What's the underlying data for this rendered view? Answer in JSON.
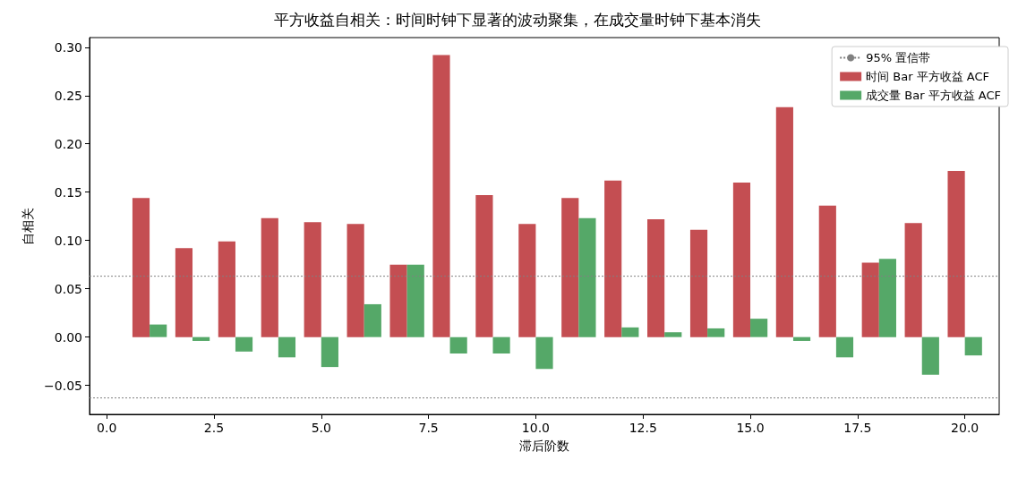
{
  "chart_data": {
    "type": "bar",
    "title": "平方收益自相关：时间时钟下显著的波动聚集，在成交量时钟下基本消失",
    "xlabel": "滞后阶数",
    "ylabel": "自相关",
    "x": [
      1,
      2,
      3,
      4,
      5,
      6,
      7,
      8,
      9,
      10,
      11,
      12,
      13,
      14,
      15,
      16,
      17,
      18,
      19,
      20
    ],
    "series": [
      {
        "name": "时间 Bar 平方收益 ACF",
        "color": "#c44e52",
        "values": [
          0.144,
          0.092,
          0.099,
          0.123,
          0.119,
          0.117,
          0.075,
          0.292,
          0.147,
          0.117,
          0.144,
          0.162,
          0.122,
          0.111,
          0.16,
          0.238,
          0.136,
          0.077,
          0.118,
          0.172
        ]
      },
      {
        "name": "成交量 Bar 平方收益 ACF",
        "color": "#55a868",
        "values": [
          0.013,
          -0.004,
          -0.015,
          -0.021,
          -0.031,
          0.034,
          0.075,
          -0.017,
          -0.017,
          -0.033,
          0.123,
          0.01,
          0.005,
          0.009,
          0.019,
          -0.004,
          -0.021,
          0.081,
          -0.039,
          -0.019
        ]
      }
    ],
    "xlim": [
      -0.4,
      20.8
    ],
    "xticks": [
      {
        "value": 0,
        "label": "0.0"
      },
      {
        "value": 2.5,
        "label": "2.5"
      },
      {
        "value": 5,
        "label": "5.0"
      },
      {
        "value": 7.5,
        "label": "7.5"
      },
      {
        "value": 10,
        "label": "10.0"
      },
      {
        "value": 12.5,
        "label": "12.5"
      },
      {
        "value": 15,
        "label": "15.0"
      },
      {
        "value": 17.5,
        "label": "17.5"
      },
      {
        "value": 20,
        "label": "20.0"
      }
    ],
    "ylim": [
      -0.08,
      0.31
    ],
    "yticks": [
      {
        "value": -0.05,
        "label": "−0.05"
      },
      {
        "value": 0,
        "label": "0.00"
      },
      {
        "value": 0.05,
        "label": "0.05"
      },
      {
        "value": 0.1,
        "label": "0.10"
      },
      {
        "value": 0.15,
        "label": "0.15"
      },
      {
        "value": 0.2,
        "label": "0.20"
      },
      {
        "value": 0.25,
        "label": "0.25"
      },
      {
        "value": 0.3,
        "label": "0.30"
      }
    ],
    "ref_lines": [
      {
        "axis": "y",
        "value": 0.063,
        "label": "95% 置信带",
        "color": "#808080",
        "line_style": "dotted"
      },
      {
        "axis": "y",
        "value": -0.063,
        "color": "#808080",
        "line_style": "dotted"
      }
    ],
    "legend": "top right",
    "grid": false
  }
}
